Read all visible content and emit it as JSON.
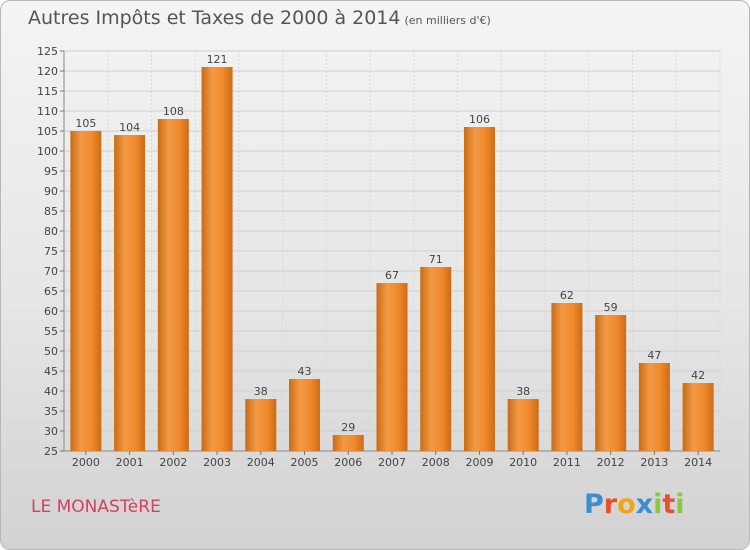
{
  "header": {
    "title": "Autres Impôts et Taxes de 2000 à 2014",
    "unit": "(en milliers d'€)"
  },
  "footer": {
    "place": "LE MONASTèRE",
    "logo_letters": [
      {
        "ch": "P",
        "color": "#3b8ed0"
      },
      {
        "ch": "r",
        "color": "#e8502c"
      },
      {
        "ch": "o",
        "color": "#f2a516"
      },
      {
        "ch": "x",
        "color": "#3b8ed0"
      },
      {
        "ch": "i",
        "color": "#8cc63e"
      },
      {
        "ch": "t",
        "color": "#e8502c"
      },
      {
        "ch": "i",
        "color": "#8cc63e"
      }
    ]
  },
  "chart_data": {
    "type": "bar",
    "title": "Autres Impôts et Taxes de 2000 à 2014",
    "categories": [
      "2000",
      "2001",
      "2002",
      "2003",
      "2004",
      "2005",
      "2006",
      "2007",
      "2008",
      "2009",
      "2010",
      "2011",
      "2012",
      "2013",
      "2014"
    ],
    "values": [
      105,
      104,
      108,
      121,
      38,
      43,
      29,
      67,
      71,
      106,
      38,
      62,
      59,
      47,
      42
    ],
    "ylim": [
      25,
      125
    ],
    "ytick_step": 5,
    "bar_color": "#f08d30",
    "grid": true
  }
}
